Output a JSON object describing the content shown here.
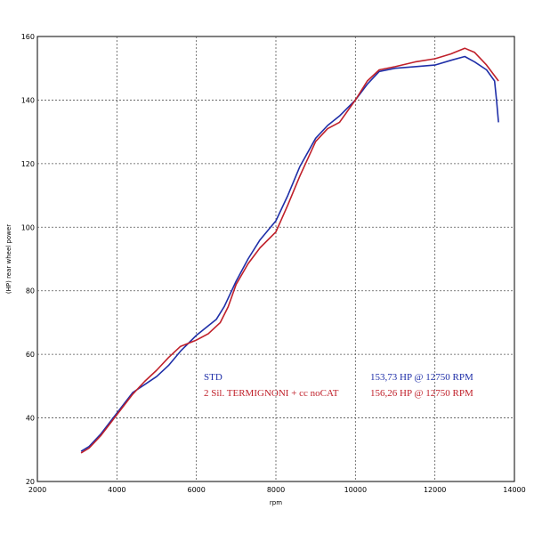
{
  "chart_data": {
    "type": "line",
    "xlabel": "rpm",
    "ylabel": "(HP) rear wheel power",
    "xlim": [
      2000,
      14000
    ],
    "ylim": [
      20,
      160
    ],
    "x_ticks": [
      "2000",
      "4000",
      "6000",
      "8000",
      "10000",
      "12000",
      "14000"
    ],
    "y_ticks": [
      "20",
      "40",
      "60",
      "80",
      "100",
      "120",
      "140",
      "160"
    ],
    "grid": true,
    "legend_position": "inside-bottom",
    "series": [
      {
        "name": "STD",
        "peak_label": "153,73 HP @ 12750 RPM",
        "color": "#1f2fa8",
        "points": [
          [
            3100,
            29.5
          ],
          [
            3300,
            31
          ],
          [
            3600,
            35
          ],
          [
            4000,
            41.5
          ],
          [
            4400,
            48
          ],
          [
            4700,
            50.5
          ],
          [
            5000,
            53
          ],
          [
            5300,
            56.5
          ],
          [
            5600,
            61
          ],
          [
            6000,
            66
          ],
          [
            6300,
            69
          ],
          [
            6500,
            71
          ],
          [
            6700,
            75
          ],
          [
            7000,
            83
          ],
          [
            7300,
            90
          ],
          [
            7600,
            96
          ],
          [
            8000,
            102
          ],
          [
            8300,
            110
          ],
          [
            8600,
            119
          ],
          [
            9000,
            128
          ],
          [
            9300,
            132
          ],
          [
            9600,
            135
          ],
          [
            10000,
            140
          ],
          [
            10300,
            145
          ],
          [
            10600,
            149
          ],
          [
            11000,
            150
          ],
          [
            11500,
            150.5
          ],
          [
            12000,
            151
          ],
          [
            12400,
            152.5
          ],
          [
            12750,
            153.7
          ],
          [
            13000,
            152
          ],
          [
            13300,
            149.5
          ],
          [
            13500,
            146
          ],
          [
            13550,
            140
          ],
          [
            13600,
            133
          ]
        ]
      },
      {
        "name": "2 Sil. TERMIGNONI + cc noCAT",
        "peak_label": "156,26 HP @ 12750 RPM",
        "color": "#c0202a",
        "points": [
          [
            3100,
            29
          ],
          [
            3300,
            30.5
          ],
          [
            3600,
            34.5
          ],
          [
            4000,
            41
          ],
          [
            4400,
            47.5
          ],
          [
            4700,
            51.5
          ],
          [
            5000,
            55
          ],
          [
            5300,
            59
          ],
          [
            5600,
            62.5
          ],
          [
            6000,
            64.5
          ],
          [
            6300,
            66.5
          ],
          [
            6600,
            70
          ],
          [
            6800,
            75
          ],
          [
            7000,
            82
          ],
          [
            7300,
            88.5
          ],
          [
            7600,
            93.5
          ],
          [
            8000,
            98.5
          ],
          [
            8300,
            107
          ],
          [
            8600,
            116
          ],
          [
            9000,
            127
          ],
          [
            9300,
            131
          ],
          [
            9600,
            133
          ],
          [
            10000,
            140
          ],
          [
            10300,
            146
          ],
          [
            10600,
            149.5
          ],
          [
            11000,
            150.5
          ],
          [
            11500,
            152
          ],
          [
            12000,
            153
          ],
          [
            12400,
            154.5
          ],
          [
            12750,
            156.3
          ],
          [
            13000,
            155
          ],
          [
            13300,
            151
          ],
          [
            13600,
            146
          ]
        ]
      }
    ]
  }
}
